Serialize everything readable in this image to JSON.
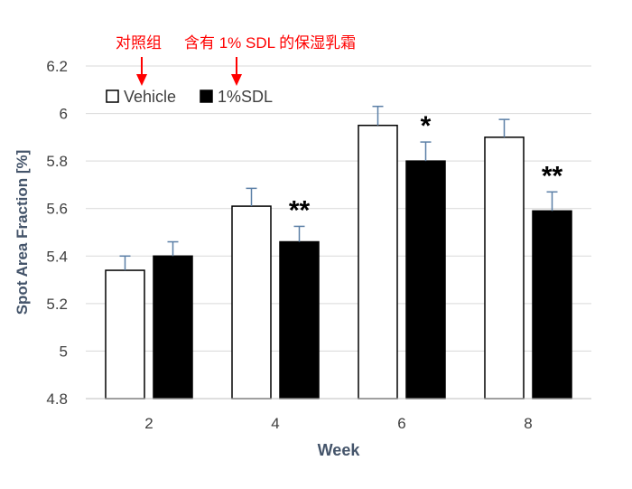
{
  "chart_data": {
    "type": "bar",
    "title": "",
    "xlabel": "Week",
    "ylabel": "Spot Area Fraction  [%]",
    "categories": [
      "2",
      "4",
      "6",
      "8"
    ],
    "ylim": [
      4.8,
      6.2
    ],
    "yticks": [
      "4.8",
      "5",
      "5.2",
      "5.4",
      "5.6",
      "5.8",
      "6",
      "6.2"
    ],
    "grid": true,
    "legend_position": "top-left",
    "series": [
      {
        "name": "Vehicle",
        "fill": "#ffffff",
        "stroke": "#000000",
        "values": [
          5.34,
          5.61,
          5.95,
          5.9
        ],
        "errors": [
          0.06,
          0.075,
          0.08,
          0.075
        ]
      },
      {
        "name": "1%SDL",
        "fill": "#000000",
        "stroke": "#000000",
        "values": [
          5.4,
          5.46,
          5.8,
          5.59
        ],
        "errors": [
          0.06,
          0.065,
          0.08,
          0.08
        ]
      }
    ],
    "significance": [
      "",
      "**",
      "*",
      "**"
    ],
    "annotations": [
      {
        "text": "对照组",
        "target": "Vehicle",
        "color": "#ff0000"
      },
      {
        "text": "含有 1% SDL 的保湿乳霜",
        "target": "1%SDL",
        "color": "#ff0000"
      }
    ],
    "colors": {
      "grid": "#d9d9d9",
      "axis_text": "#404040",
      "axis_title": "#44546a",
      "error_bar": "#5b7fa6",
      "annotation": "#ff0000"
    }
  }
}
